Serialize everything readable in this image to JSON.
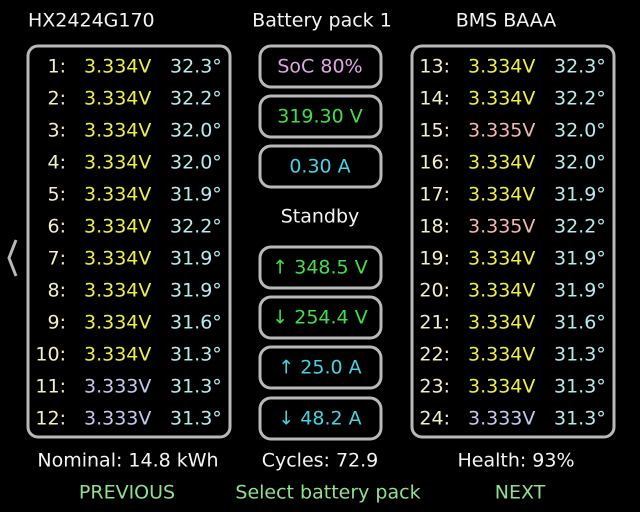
{
  "header": {
    "left": "HX2424G170",
    "center": "Battery pack 1",
    "right": "BMS BAAA"
  },
  "cells": [
    {
      "index": "1:",
      "voltage": "3.334V",
      "temperature": "32.3°",
      "color": "#f2f043"
    },
    {
      "index": "2:",
      "voltage": "3.334V",
      "temperature": "32.2°",
      "color": "#f2f043"
    },
    {
      "index": "3:",
      "voltage": "3.334V",
      "temperature": "32.0°",
      "color": "#f2f043"
    },
    {
      "index": "4:",
      "voltage": "3.334V",
      "temperature": "32.0°",
      "color": "#f2f043"
    },
    {
      "index": "5:",
      "voltage": "3.334V",
      "temperature": "31.9°",
      "color": "#f2f043"
    },
    {
      "index": "6:",
      "voltage": "3.334V",
      "temperature": "32.2°",
      "color": "#f2f043"
    },
    {
      "index": "7:",
      "voltage": "3.334V",
      "temperature": "31.9°",
      "color": "#f2f043"
    },
    {
      "index": "8:",
      "voltage": "3.334V",
      "temperature": "31.9°",
      "color": "#f2f043"
    },
    {
      "index": "9:",
      "voltage": "3.334V",
      "temperature": "31.6°",
      "color": "#f2f043"
    },
    {
      "index": "10:",
      "voltage": "3.334V",
      "temperature": "31.3°",
      "color": "#f2f043"
    },
    {
      "index": "11:",
      "voltage": "3.333V",
      "temperature": "31.3°",
      "color": "#c4cbef"
    },
    {
      "index": "12:",
      "voltage": "3.333V",
      "temperature": "31.3°",
      "color": "#c4cbef"
    },
    {
      "index": "13:",
      "voltage": "3.334V",
      "temperature": "32.3°",
      "color": "#f2f043"
    },
    {
      "index": "14:",
      "voltage": "3.334V",
      "temperature": "32.2°",
      "color": "#f2f043"
    },
    {
      "index": "15:",
      "voltage": "3.335V",
      "temperature": "32.0°",
      "color": "#f5b9b0"
    },
    {
      "index": "16:",
      "voltage": "3.334V",
      "temperature": "32.0°",
      "color": "#f2f043"
    },
    {
      "index": "17:",
      "voltage": "3.334V",
      "temperature": "31.9°",
      "color": "#f2f043"
    },
    {
      "index": "18:",
      "voltage": "3.335V",
      "temperature": "32.2°",
      "color": "#f5b9b0"
    },
    {
      "index": "19:",
      "voltage": "3.334V",
      "temperature": "31.9°",
      "color": "#f2f043"
    },
    {
      "index": "20:",
      "voltage": "3.334V",
      "temperature": "31.9°",
      "color": "#f2f043"
    },
    {
      "index": "21:",
      "voltage": "3.334V",
      "temperature": "31.6°",
      "color": "#f2f043"
    },
    {
      "index": "22:",
      "voltage": "3.334V",
      "temperature": "31.3°",
      "color": "#f2f043"
    },
    {
      "index": "23:",
      "voltage": "3.334V",
      "temperature": "31.3°",
      "color": "#f2f043"
    },
    {
      "index": "24:",
      "voltage": "3.333V",
      "temperature": "31.3°",
      "color": "#c4cbef"
    }
  ],
  "status_boxes": [
    {
      "text": "SoC 80%",
      "color": "#e2a6e6"
    },
    {
      "text": "319.30 V",
      "color": "#3fe046"
    },
    {
      "text": "0.30 A",
      "color": "#45d3e3"
    }
  ],
  "state": "Standby",
  "limit_boxes": [
    {
      "text": "↑ 348.5 V",
      "color": "#3fe046"
    },
    {
      "text": "↓ 254.4 V",
      "color": "#3fe046"
    },
    {
      "text": "↑ 25.0 A",
      "color": "#45d3e3"
    },
    {
      "text": "↓ 48.2 A",
      "color": "#45d3e3"
    }
  ],
  "footer": {
    "nominal": "Nominal: 14.8 kWh",
    "cycles": "Cycles: 72.9",
    "health": "Health: 93%"
  },
  "buttons": {
    "previous": "PREVIOUS",
    "select": "Select battery pack",
    "next": "NEXT"
  }
}
